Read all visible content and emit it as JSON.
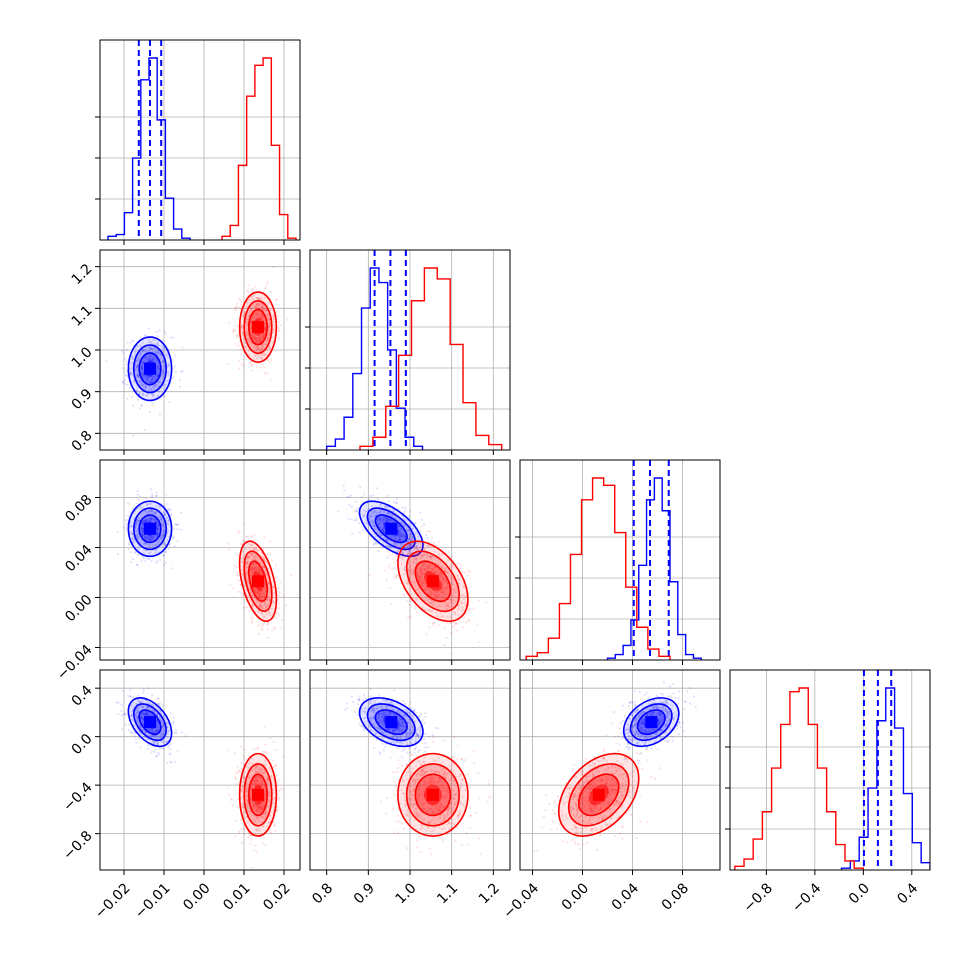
{
  "chart_data": {
    "type": "corner",
    "grid": true,
    "colors": {
      "series_a": "#0000ff",
      "series_b": "#ff0000"
    },
    "parameters": [
      {
        "range": [
          -0.026,
          0.024
        ],
        "ticks": [
          "−0.02",
          "−0.01",
          "0.00",
          "0.01",
          "0.02"
        ],
        "tick_values": [
          -0.02,
          -0.01,
          0.0,
          0.01,
          0.02
        ]
      },
      {
        "range": [
          0.76,
          1.24
        ],
        "ticks": [
          "0.8",
          "0.9",
          "1.0",
          "1.1",
          "1.2"
        ],
        "tick_values": [
          0.8,
          0.9,
          1.0,
          1.1,
          1.2
        ]
      },
      {
        "range": [
          -0.05,
          0.11
        ],
        "ticks": [
          "−0.04",
          "0.00",
          "0.04",
          "0.08"
        ],
        "tick_values": [
          -0.04,
          0.0,
          0.04,
          0.08
        ]
      },
      {
        "range": [
          -1.1,
          0.55
        ],
        "ticks": [
          "−0.8",
          "−0.4",
          "0.0",
          "0.4"
        ],
        "tick_values": [
          -0.8,
          -0.4,
          0.0,
          0.4
        ]
      }
    ],
    "series": [
      {
        "color": "#0000ff",
        "means": [
          -0.0135,
          0.955,
          0.055,
          0.12
        ],
        "sds": [
          0.0027,
          0.038,
          0.011,
          0.1
        ],
        "quantiles": [
          [
            -0.0163,
            -0.0135,
            -0.0107
          ],
          [
            0.915,
            0.953,
            0.99
          ],
          [
            0.041,
            0.054,
            0.069
          ],
          [
            0.005,
            0.12,
            0.23
          ]
        ],
        "hist_heights": [
          [
            0.02,
            0.03,
            0.15,
            0.45,
            0.88,
            1.0,
            0.66,
            0.23,
            0.06,
            0.01
          ],
          [
            0.02,
            0.06,
            0.18,
            0.42,
            0.78,
            1.0,
            0.92,
            0.55,
            0.23,
            0.07,
            0.02
          ],
          [
            0.01,
            0.03,
            0.08,
            0.22,
            0.52,
            0.88,
            1.0,
            0.82,
            0.43,
            0.14,
            0.03,
            0.01
          ],
          [
            0.01,
            0.05,
            0.18,
            0.45,
            0.82,
            1.0,
            0.78,
            0.42,
            0.15,
            0.04
          ]
        ],
        "hist_ranges": [
          [
            -0.024,
            -0.0035
          ],
          [
            0.8,
            1.03
          ],
          [
            0.02,
            0.095
          ],
          [
            -0.18,
            0.55
          ]
        ]
      },
      {
        "color": "#ff0000",
        "means": [
          0.0135,
          1.055,
          0.013,
          -0.48
        ],
        "sds": [
          0.0023,
          0.042,
          0.016,
          0.17
        ],
        "quantiles": null,
        "hist_heights": [
          [
            0.02,
            0.08,
            0.41,
            0.79,
            0.96,
            1.0,
            0.52,
            0.14,
            0.01
          ],
          [
            0.02,
            0.07,
            0.24,
            0.52,
            0.82,
            1.0,
            0.94,
            0.58,
            0.26,
            0.08,
            0.03
          ],
          [
            0.02,
            0.04,
            0.12,
            0.31,
            0.58,
            0.88,
            1.0,
            0.96,
            0.7,
            0.4,
            0.18,
            0.06,
            0.02
          ],
          [
            0.02,
            0.06,
            0.17,
            0.32,
            0.56,
            0.8,
            0.98,
            1.0,
            0.8,
            0.56,
            0.32,
            0.14,
            0.05,
            0.01
          ]
        ],
        "hist_ranges": [
          [
            0.0045,
            0.023
          ],
          [
            0.88,
            1.22
          ],
          [
            -0.045,
            0.07
          ],
          [
            -1.06,
            0.0
          ]
        ]
      }
    ],
    "correlations": {
      "1-0": [
        0.0,
        0.0
      ],
      "2-0": [
        0.0,
        -0.45
      ],
      "2-1": [
        -0.6,
        -0.45
      ],
      "3-0": [
        -0.45,
        0.0
      ],
      "3-1": [
        -0.4,
        0.0
      ],
      "3-2": [
        0.35,
        0.4
      ]
    }
  }
}
